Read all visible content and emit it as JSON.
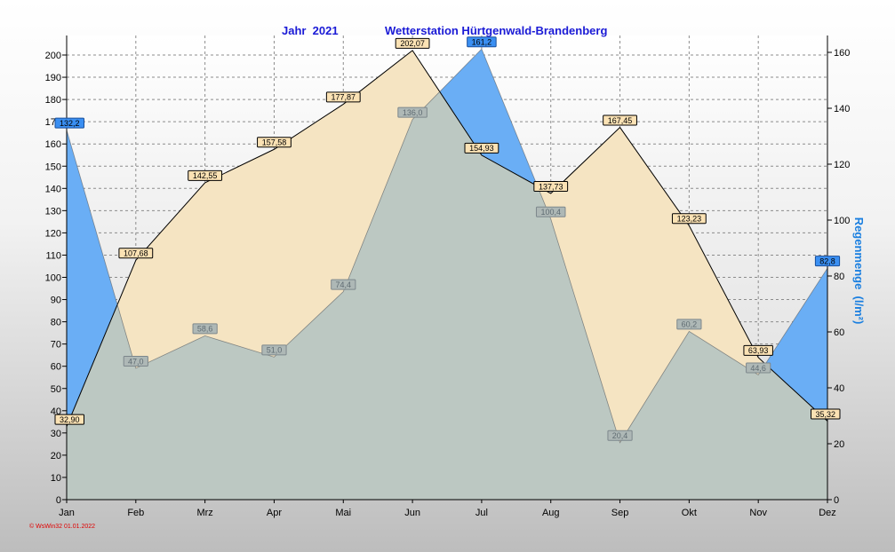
{
  "header": {
    "year_label": "Jahr  2021",
    "station_label": "Wetterstation Hürtgenwald-Brandenberg"
  },
  "footer": {
    "credit": "© WsWin32  01.01.2022"
  },
  "colors": {
    "sunshine_fill": "#f5e4c2",
    "rain_fill": "#6aaef5",
    "overlap_fill": "#bcc8c2",
    "right_axis_label": "#1a7fe0"
  },
  "chart_data": {
    "type": "area",
    "categories": [
      "Jan",
      "Feb",
      "Mrz",
      "Apr",
      "Mai",
      "Jun",
      "Jul",
      "Aug",
      "Sep",
      "Okt",
      "Nov",
      "Dez"
    ],
    "series": [
      {
        "axis": "left",
        "values": [
          32.9,
          107.68,
          142.55,
          157.58,
          177.87,
          202.07,
          154.93,
          137.73,
          167.45,
          123.23,
          63.93,
          35.32
        ],
        "value_labels": [
          "32,90",
          "107,68",
          "142,55",
          "157,58",
          "177,87",
          "202,07",
          "154,93",
          "137,73",
          "167,45",
          "123,23",
          "63,93",
          "35,32"
        ]
      },
      {
        "name": "Regenmenge",
        "axis": "right",
        "values": [
          132.2,
          47.0,
          58.6,
          51.0,
          74.4,
          136.0,
          161.2,
          100.4,
          20.4,
          60.2,
          44.6,
          82.8
        ],
        "value_labels": [
          "132,2",
          "47,0",
          "58,6",
          "51,0",
          "74,4",
          "136,0",
          "161,2",
          "100,4",
          "20,4",
          "60,2",
          "44,6",
          "82,8"
        ]
      }
    ],
    "y_left": {
      "label": "",
      "ylim": [
        0,
        200
      ],
      "ticks": [
        0,
        10,
        20,
        30,
        40,
        50,
        60,
        70,
        80,
        90,
        100,
        110,
        120,
        130,
        140,
        150,
        160,
        170,
        180,
        190,
        200
      ]
    },
    "y_right": {
      "label": "Regenmenge  (l/m²)",
      "ylim": [
        0,
        160
      ],
      "ticks": [
        0,
        20,
        40,
        60,
        80,
        100,
        120,
        140,
        160
      ]
    },
    "grid": true,
    "xlabel": ""
  }
}
